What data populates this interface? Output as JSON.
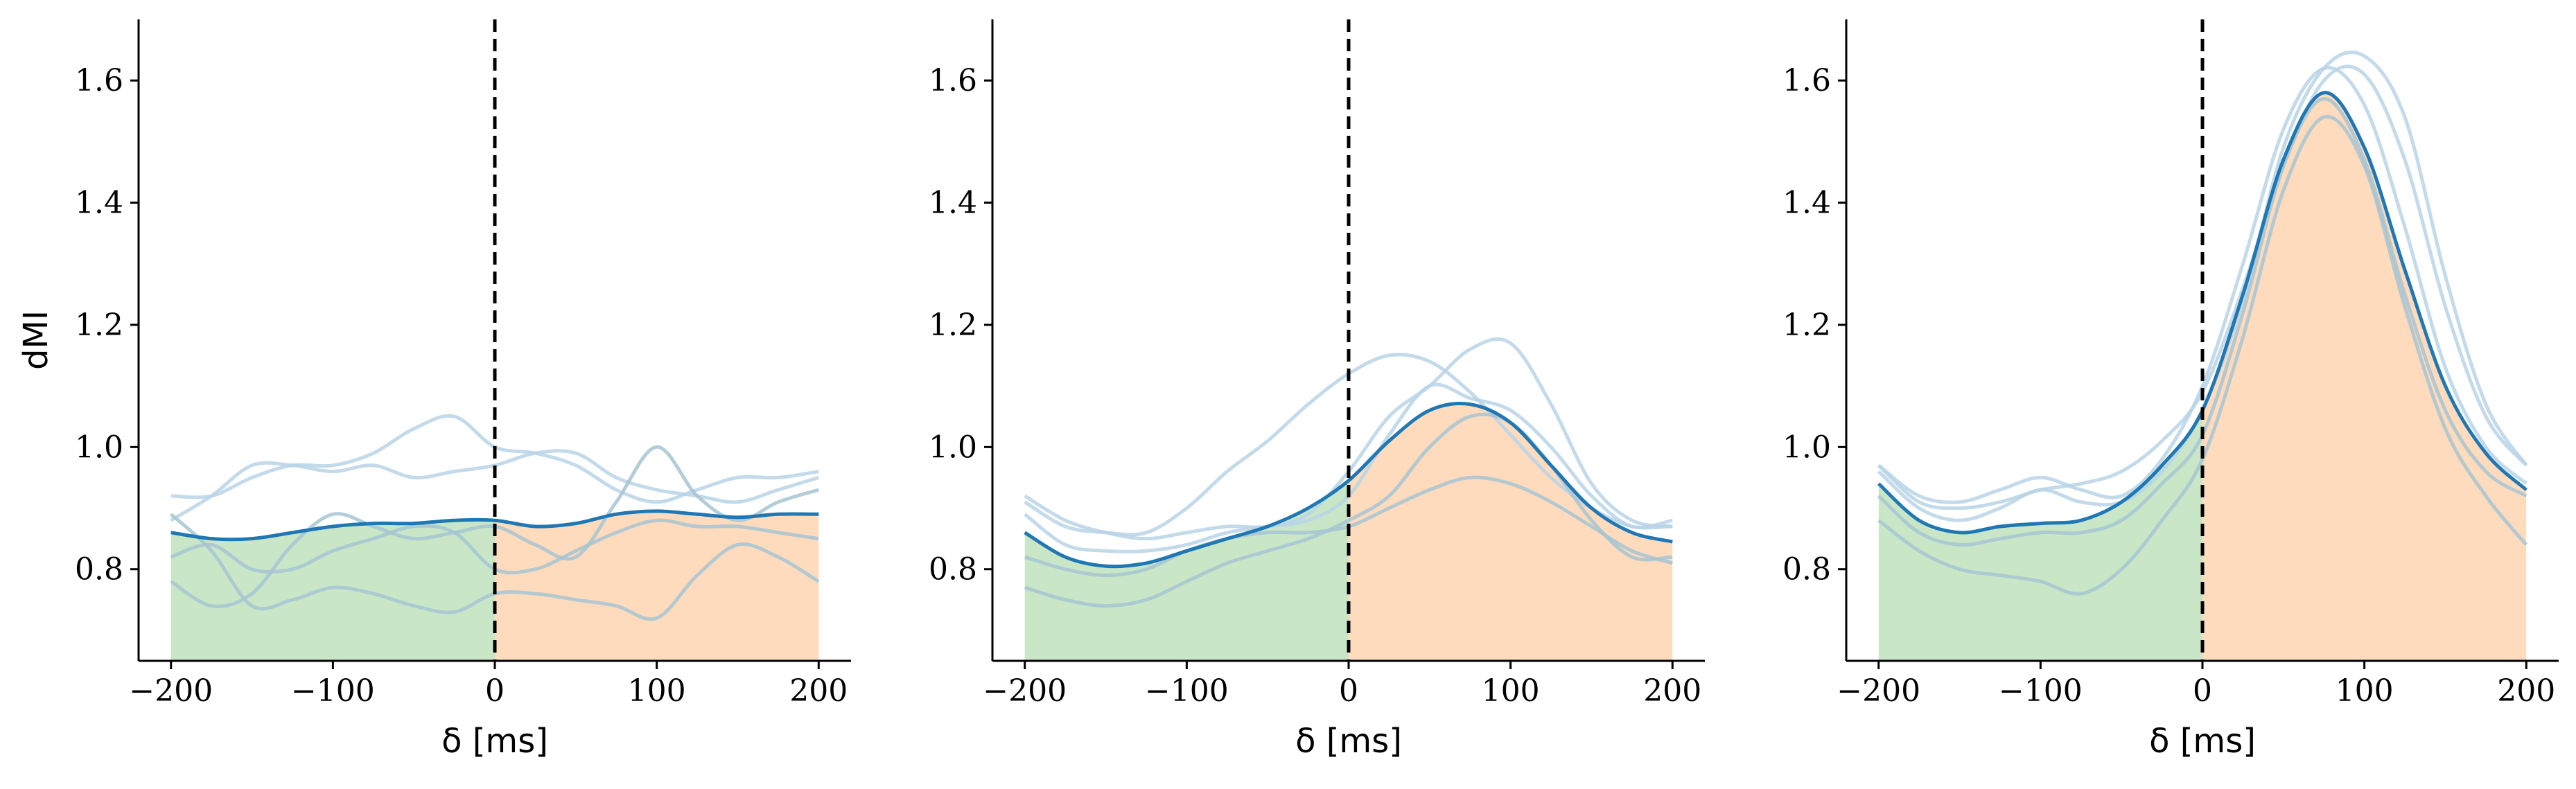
{
  "chart_data": [
    {
      "type": "line",
      "panel": "left",
      "xlabel": "δ [ms]",
      "ylabel": "dMI",
      "xlim": [
        -220,
        220
      ],
      "ylim": [
        0.65,
        1.7
      ],
      "xticks": [
        -200,
        -100,
        0,
        100,
        200
      ],
      "xtick_labels": [
        "−200",
        "−100",
        "0",
        "100",
        "200"
      ],
      "yticks": [
        0.8,
        1.0,
        1.2,
        1.4,
        1.6
      ],
      "ytick_labels": [
        "0.8",
        "1.0",
        "1.2",
        "1.4",
        "1.6"
      ],
      "vline_x": 0,
      "shade_before": {
        "from": -200,
        "to": 0,
        "color": "#c9e6c6"
      },
      "shade_after": {
        "from": 0,
        "to": 200,
        "color": "#fedbbd"
      },
      "x": [
        -200,
        -175,
        -150,
        -125,
        -100,
        -75,
        -50,
        -25,
        0,
        25,
        50,
        75,
        100,
        125,
        150,
        175,
        200
      ],
      "mean": {
        "color": "#1f77b4",
        "values": [
          0.86,
          0.85,
          0.85,
          0.86,
          0.87,
          0.875,
          0.875,
          0.88,
          0.88,
          0.87,
          0.875,
          0.89,
          0.895,
          0.89,
          0.885,
          0.89,
          0.89
        ]
      },
      "trials": [
        {
          "color": "#b8d4e8",
          "values": [
            0.92,
            0.92,
            0.95,
            0.97,
            0.97,
            0.99,
            1.03,
            1.05,
            1.0,
            0.99,
            0.97,
            0.93,
            0.91,
            0.93,
            0.95,
            0.95,
            0.96
          ]
        },
        {
          "color": "#b8d4e8",
          "values": [
            0.88,
            0.92,
            0.97,
            0.97,
            0.96,
            0.97,
            0.95,
            0.96,
            0.97,
            0.99,
            0.99,
            0.95,
            0.93,
            0.92,
            0.91,
            0.93,
            0.95
          ]
        },
        {
          "color": "#a6c4d2",
          "values": [
            0.78,
            0.74,
            0.76,
            0.84,
            0.89,
            0.87,
            0.85,
            0.86,
            0.87,
            0.84,
            0.82,
            0.91,
            1.0,
            0.92,
            0.88,
            0.91,
            0.93
          ]
        },
        {
          "color": "#a6c4d2",
          "values": [
            0.89,
            0.83,
            0.74,
            0.75,
            0.77,
            0.76,
            0.74,
            0.73,
            0.76,
            0.76,
            0.75,
            0.74,
            0.72,
            0.79,
            0.84,
            0.82,
            0.78
          ]
        },
        {
          "color": "#a6c4d2",
          "values": [
            0.82,
            0.84,
            0.8,
            0.8,
            0.83,
            0.85,
            0.87,
            0.86,
            0.8,
            0.8,
            0.83,
            0.86,
            0.88,
            0.87,
            0.87,
            0.86,
            0.85
          ]
        }
      ]
    },
    {
      "type": "line",
      "panel": "middle",
      "xlabel": "δ [ms]",
      "ylabel": "",
      "xlim": [
        -220,
        220
      ],
      "ylim": [
        0.65,
        1.7
      ],
      "xticks": [
        -200,
        -100,
        0,
        100,
        200
      ],
      "xtick_labels": [
        "−200",
        "−100",
        "0",
        "100",
        "200"
      ],
      "yticks": [
        0.8,
        1.0,
        1.2,
        1.4,
        1.6
      ],
      "ytick_labels": [
        "0.8",
        "1.0",
        "1.2",
        "1.4",
        "1.6"
      ],
      "vline_x": 0,
      "shade_before": {
        "from": -200,
        "to": 0,
        "color": "#c9e6c6"
      },
      "shade_after": {
        "from": 0,
        "to": 200,
        "color": "#fedbbd"
      },
      "x": [
        -200,
        -175,
        -150,
        -125,
        -100,
        -75,
        -50,
        -25,
        0,
        25,
        50,
        75,
        100,
        125,
        150,
        175,
        200
      ],
      "mean": {
        "color": "#1f77b4",
        "values": [
          0.86,
          0.82,
          0.805,
          0.81,
          0.83,
          0.85,
          0.87,
          0.9,
          0.945,
          1.01,
          1.06,
          1.07,
          1.04,
          0.97,
          0.9,
          0.86,
          0.845
        ]
      },
      "trials": [
        {
          "color": "#b8d4e8",
          "values": [
            0.91,
            0.87,
            0.86,
            0.86,
            0.9,
            0.96,
            1.01,
            1.07,
            1.12,
            1.15,
            1.14,
            1.09,
            1.02,
            0.95,
            0.9,
            0.87,
            0.87
          ]
        },
        {
          "color": "#b8d4e8",
          "values": [
            0.92,
            0.88,
            0.86,
            0.85,
            0.86,
            0.87,
            0.87,
            0.89,
            0.96,
            1.05,
            1.1,
            1.16,
            1.17,
            1.07,
            0.94,
            0.88,
            0.87
          ]
        },
        {
          "color": "#b8d4e8",
          "values": [
            0.89,
            0.84,
            0.83,
            0.83,
            0.84,
            0.86,
            0.87,
            0.88,
            0.92,
            1.02,
            1.1,
            1.08,
            1.06,
            1.0,
            0.92,
            0.87,
            0.88
          ]
        },
        {
          "color": "#a6c4d2",
          "values": [
            0.77,
            0.75,
            0.74,
            0.75,
            0.78,
            0.81,
            0.83,
            0.85,
            0.88,
            0.92,
            1.0,
            1.05,
            1.04,
            0.97,
            0.88,
            0.82,
            0.82
          ]
        },
        {
          "color": "#a6c4d2",
          "values": [
            0.82,
            0.8,
            0.79,
            0.8,
            0.83,
            0.85,
            0.86,
            0.86,
            0.87,
            0.9,
            0.93,
            0.95,
            0.94,
            0.91,
            0.87,
            0.83,
            0.81
          ]
        }
      ]
    },
    {
      "type": "line",
      "panel": "right",
      "xlabel": "δ [ms]",
      "ylabel": "",
      "xlim": [
        -220,
        220
      ],
      "ylim": [
        0.65,
        1.7
      ],
      "xticks": [
        -200,
        -100,
        0,
        100,
        200
      ],
      "xtick_labels": [
        "−200",
        "−100",
        "0",
        "100",
        "200"
      ],
      "yticks": [
        0.8,
        1.0,
        1.2,
        1.4,
        1.6
      ],
      "ytick_labels": [
        "0.8",
        "1.0",
        "1.2",
        "1.4",
        "1.6"
      ],
      "vline_x": 0,
      "shade_before": {
        "from": -200,
        "to": 0,
        "color": "#c9e6c6"
      },
      "shade_after": {
        "from": 0,
        "to": 200,
        "color": "#fedbbd"
      },
      "x": [
        -200,
        -175,
        -150,
        -125,
        -100,
        -75,
        -50,
        -25,
        0,
        25,
        50,
        75,
        100,
        125,
        150,
        175,
        200
      ],
      "mean": {
        "color": "#1f77b4",
        "values": [
          0.94,
          0.88,
          0.86,
          0.87,
          0.875,
          0.88,
          0.91,
          0.97,
          1.06,
          1.25,
          1.47,
          1.58,
          1.49,
          1.29,
          1.1,
          0.99,
          0.93
        ]
      },
      "trials": [
        {
          "color": "#b8d4e8",
          "values": [
            0.97,
            0.91,
            0.9,
            0.91,
            0.93,
            0.94,
            0.96,
            1.01,
            1.09,
            1.26,
            1.46,
            1.6,
            1.61,
            1.47,
            1.23,
            1.05,
            0.97
          ]
        },
        {
          "color": "#b8d4e8",
          "values": [
            0.97,
            0.92,
            0.91,
            0.93,
            0.95,
            0.93,
            0.92,
            0.98,
            1.1,
            1.3,
            1.52,
            1.62,
            1.56,
            1.36,
            1.13,
            1.0,
            0.94
          ]
        },
        {
          "color": "#b8d4e8",
          "values": [
            0.96,
            0.9,
            0.88,
            0.9,
            0.93,
            0.91,
            0.91,
            0.96,
            1.06,
            1.24,
            1.49,
            1.62,
            1.64,
            1.54,
            1.28,
            1.07,
            0.97
          ]
        },
        {
          "color": "#a6c4d2",
          "values": [
            0.88,
            0.83,
            0.8,
            0.79,
            0.78,
            0.76,
            0.8,
            0.88,
            0.98,
            1.18,
            1.42,
            1.54,
            1.46,
            1.23,
            1.03,
            0.92,
            0.84
          ]
        },
        {
          "color": "#a6c4d2",
          "values": [
            0.92,
            0.86,
            0.84,
            0.85,
            0.86,
            0.86,
            0.88,
            0.94,
            1.02,
            1.22,
            1.46,
            1.57,
            1.47,
            1.25,
            1.06,
            0.96,
            0.92
          ]
        }
      ]
    }
  ]
}
